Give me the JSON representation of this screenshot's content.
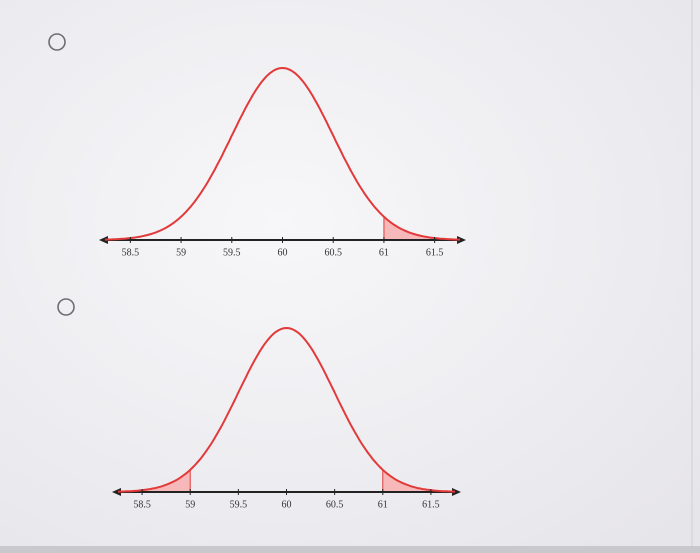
{
  "chart_data": [
    {
      "type": "normal",
      "mean": 60,
      "sd": 0.5,
      "xlim": [
        58.25,
        61.75
      ],
      "xticks": [
        58.5,
        59,
        59.5,
        60,
        60.5,
        61,
        61.5
      ],
      "shade_above": 61,
      "color": "#e23a3a",
      "shade_color": "#f6b8b8"
    },
    {
      "type": "normal",
      "mean": 60,
      "sd": 0.5,
      "xlim": [
        58.25,
        61.75
      ],
      "xticks": [
        58.5,
        59,
        59.5,
        60,
        60.5,
        61,
        61.5
      ],
      "shade_below": 59,
      "shade_above": 61,
      "color": "#e23a3a",
      "shade_color": "#f6b8b8"
    }
  ]
}
